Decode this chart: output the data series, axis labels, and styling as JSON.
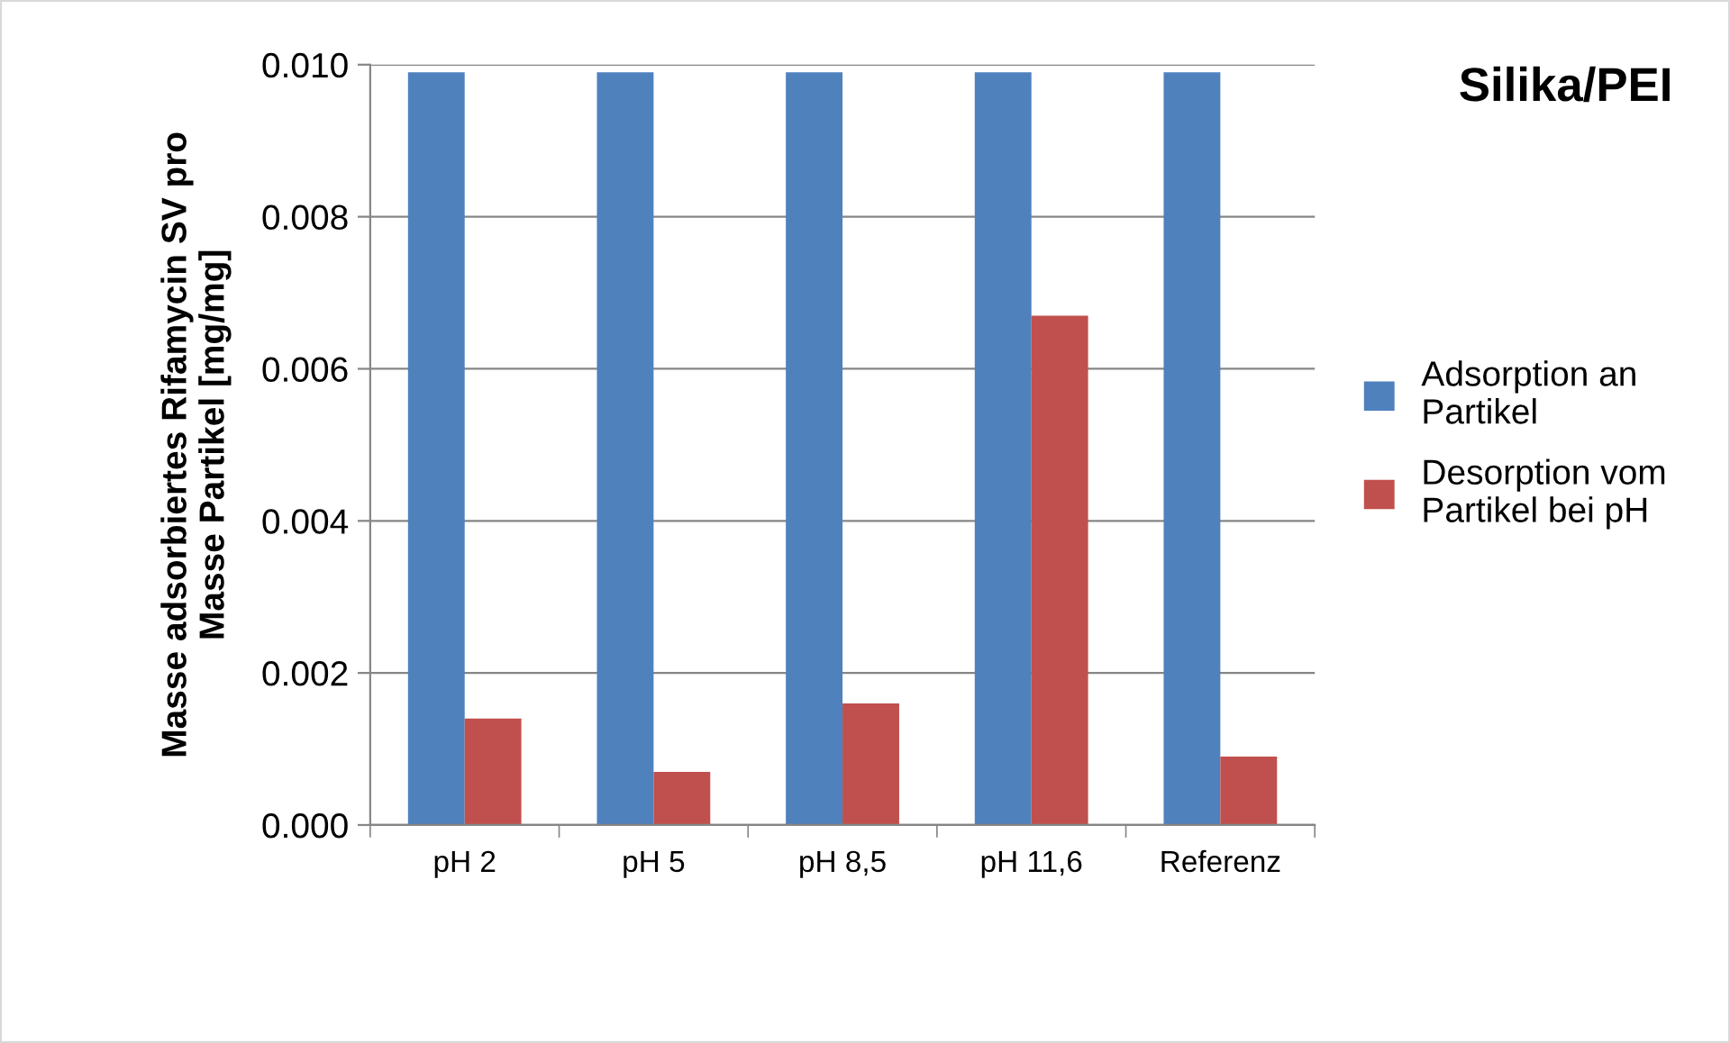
{
  "chart_data": {
    "type": "bar",
    "title": "Silika/PEI",
    "ylabel": "Masse adsorbiertes Rifamycin SV pro\nMasse Partikel [mg/mg]",
    "categories": [
      "pH 2",
      "pH 5",
      "pH 8,5",
      "pH 11,6",
      "Referenz"
    ],
    "series": [
      {
        "name": "Adsorption an\nPartikel",
        "color": "#4f81bd",
        "values": [
          0.0099,
          0.0099,
          0.0099,
          0.0099,
          0.0099
        ]
      },
      {
        "name": "Desorption vom\nPartikel bei pH",
        "color": "#c0504d",
        "values": [
          0.0014,
          0.0007,
          0.0016,
          0.0067,
          0.0009
        ]
      }
    ],
    "ylim": [
      0,
      0.01
    ],
    "yticks": [
      {
        "value": 0,
        "label": "0.000"
      },
      {
        "value": 0.002,
        "label": "0.002"
      },
      {
        "value": 0.004,
        "label": "0.004"
      },
      {
        "value": 0.006,
        "label": "0.006"
      },
      {
        "value": 0.008,
        "label": "0.008"
      },
      {
        "value": 0.01,
        "label": "0.010"
      }
    ],
    "grid": "y",
    "legend": "right"
  }
}
